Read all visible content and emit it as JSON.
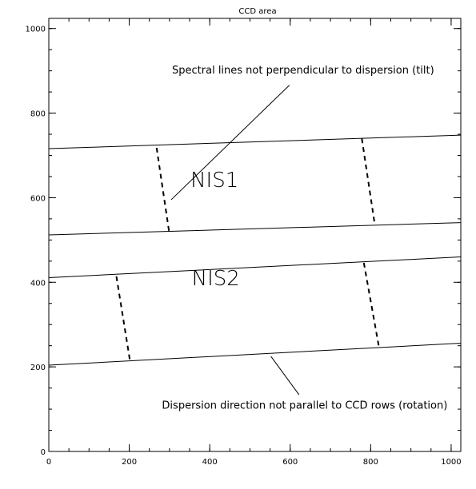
{
  "diagram": {
    "title": "CCD area",
    "x_axis": {
      "range": [
        0,
        1024
      ],
      "ticks": [
        0,
        200,
        400,
        600,
        800,
        1000
      ],
      "minor_step": 50
    },
    "y_axis": {
      "range": [
        0,
        1024
      ],
      "ticks": [
        0,
        200,
        400,
        600,
        800,
        1000
      ],
      "minor_step": 50
    },
    "boundary_lines": [
      {
        "name": "nis1-top-line",
        "x": [
          0,
          1024
        ],
        "y": [
          716,
          748
        ]
      },
      {
        "name": "nis1-bottom-line",
        "x": [
          0,
          1024
        ],
        "y": [
          512,
          541
        ]
      },
      {
        "name": "nis2-top-line",
        "x": [
          0,
          1024
        ],
        "y": [
          411,
          460
        ]
      },
      {
        "name": "nis2-bottom-line",
        "x": [
          0,
          1024
        ],
        "y": [
          204,
          256
        ]
      }
    ],
    "tilt_lines": [
      {
        "name": "nis1-left-tilt",
        "x": [
          268,
          300
        ],
        "y": [
          718,
          513
        ]
      },
      {
        "name": "nis1-right-tilt",
        "x": [
          778,
          810
        ],
        "y": [
          740,
          538
        ]
      },
      {
        "name": "nis2-left-tilt",
        "x": [
          168,
          202
        ],
        "y": [
          414,
          213
        ]
      },
      {
        "name": "nis2-right-tilt",
        "x": [
          783,
          820
        ],
        "y": [
          446,
          250
        ]
      }
    ],
    "regions": [
      {
        "name": "nis1-label",
        "label": "NIS1",
        "x": 412,
        "y": 625
      },
      {
        "name": "nis2-label",
        "label": "NIS2",
        "x": 415,
        "y": 393
      }
    ],
    "annotations": [
      {
        "name": "tilt-annotation",
        "text": "Spectral lines not perpendicular to dispersion (tilt)",
        "text_x": 632,
        "text_y": 894,
        "pointer": {
          "x": [
            598,
            304
          ],
          "y": [
            866,
            595
          ]
        }
      },
      {
        "name": "rotation-annotation",
        "text": "Dispersion direction not parallel to CCD rows (rotation)",
        "text_x": 636,
        "text_y": 101,
        "pointer": {
          "x": [
            552,
            622
          ],
          "y": [
            225,
            134
          ]
        }
      }
    ]
  }
}
